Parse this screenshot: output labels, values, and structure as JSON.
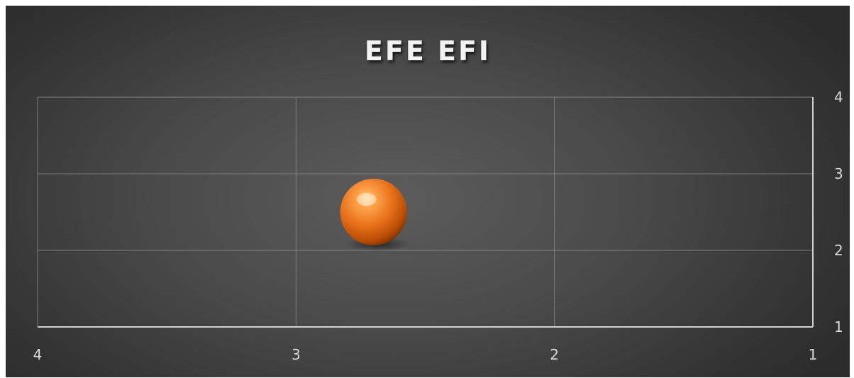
{
  "chart_data": {
    "type": "bubble",
    "title": "EFE EFI",
    "xlabel": "",
    "ylabel": "",
    "x_axis": {
      "min": 1,
      "max": 4,
      "reversed": true,
      "ticks": [
        "4",
        "3",
        "2",
        "1"
      ],
      "tick_values": [
        4,
        3,
        2,
        1
      ]
    },
    "y_axis": {
      "min": 1,
      "max": 4,
      "position": "right",
      "ticks": [
        "1",
        "2",
        "3",
        "4"
      ],
      "tick_values": [
        1,
        2,
        3,
        4
      ]
    },
    "grid": true,
    "legend": "none",
    "series": [
      {
        "points": [
          {
            "x": 2.7,
            "y": 2.5
          }
        ],
        "color": "#e46c0a"
      }
    ]
  }
}
